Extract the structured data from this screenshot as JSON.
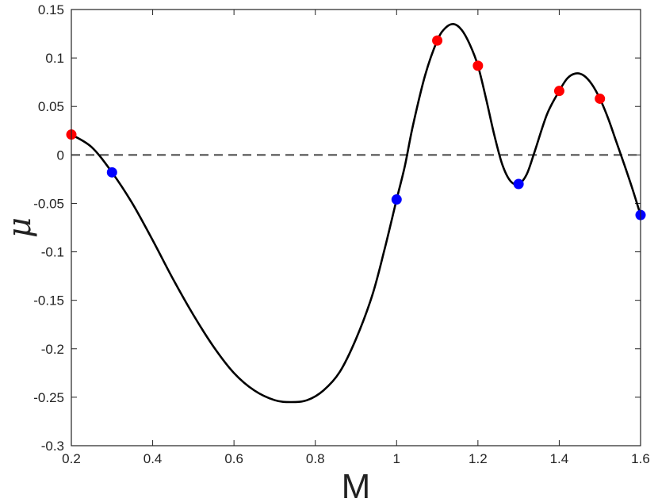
{
  "chart_data": {
    "type": "line",
    "xlabel": "M",
    "ylabel": "μ",
    "xlim": [
      0.2,
      1.6
    ],
    "ylim": [
      -0.3,
      0.15
    ],
    "xticks": [
      0.2,
      0.4,
      0.6,
      0.8,
      1,
      1.2,
      1.4,
      1.6
    ],
    "yticks": [
      -0.3,
      -0.25,
      -0.2,
      -0.15,
      -0.1,
      -0.05,
      0,
      0.05,
      0.1,
      0.15
    ],
    "xtick_labels": [
      "0.2",
      "0.4",
      "0.6",
      "0.8",
      "1",
      "1.2",
      "1.4",
      "1.6"
    ],
    "ytick_labels": [
      "-0.3",
      "-0.25",
      "-0.2",
      "-0.15",
      "-0.1",
      "-0.05",
      "0",
      "0.05",
      "0.1",
      "0.15"
    ],
    "grid": false,
    "reference_line": {
      "y": 0,
      "style": "dashed",
      "color": "#444444"
    },
    "series": [
      {
        "style": "line",
        "color": "#000000",
        "points": [
          [
            0.2,
            0.021
          ],
          [
            0.25,
            0.008
          ],
          [
            0.3,
            -0.018
          ],
          [
            0.35,
            -0.05
          ],
          [
            0.4,
            -0.088
          ],
          [
            0.45,
            -0.128
          ],
          [
            0.5,
            -0.165
          ],
          [
            0.55,
            -0.198
          ],
          [
            0.6,
            -0.225
          ],
          [
            0.65,
            -0.243
          ],
          [
            0.7,
            -0.253
          ],
          [
            0.74,
            -0.255
          ],
          [
            0.78,
            -0.253
          ],
          [
            0.82,
            -0.243
          ],
          [
            0.86,
            -0.224
          ],
          [
            0.9,
            -0.19
          ],
          [
            0.94,
            -0.145
          ],
          [
            0.97,
            -0.098
          ],
          [
            1.0,
            -0.046
          ],
          [
            1.02,
            -0.012
          ],
          [
            1.04,
            0.03
          ],
          [
            1.07,
            0.082
          ],
          [
            1.1,
            0.118
          ],
          [
            1.12,
            0.131
          ],
          [
            1.14,
            0.135
          ],
          [
            1.16,
            0.129
          ],
          [
            1.18,
            0.114
          ],
          [
            1.2,
            0.092
          ],
          [
            1.22,
            0.058
          ],
          [
            1.24,
            0.021
          ],
          [
            1.26,
            -0.01
          ],
          [
            1.28,
            -0.027
          ],
          [
            1.3,
            -0.03
          ],
          [
            1.32,
            -0.02
          ],
          [
            1.34,
            0.004
          ],
          [
            1.37,
            0.042
          ],
          [
            1.4,
            0.066
          ],
          [
            1.42,
            0.079
          ],
          [
            1.44,
            0.084
          ],
          [
            1.46,
            0.082
          ],
          [
            1.48,
            0.073
          ],
          [
            1.5,
            0.058
          ],
          [
            1.52,
            0.038
          ],
          [
            1.54,
            0.014
          ],
          [
            1.56,
            -0.01
          ],
          [
            1.58,
            -0.035
          ],
          [
            1.6,
            -0.062
          ]
        ]
      },
      {
        "style": "markers",
        "color": "#ff0000",
        "points": [
          [
            0.2,
            0.021
          ],
          [
            1.1,
            0.118
          ],
          [
            1.2,
            0.092
          ],
          [
            1.4,
            0.066
          ],
          [
            1.5,
            0.058
          ]
        ]
      },
      {
        "style": "markers",
        "color": "#0000ff",
        "points": [
          [
            0.3,
            -0.018
          ],
          [
            1.0,
            -0.046
          ],
          [
            1.3,
            -0.03
          ],
          [
            1.6,
            -0.062
          ]
        ]
      }
    ]
  }
}
